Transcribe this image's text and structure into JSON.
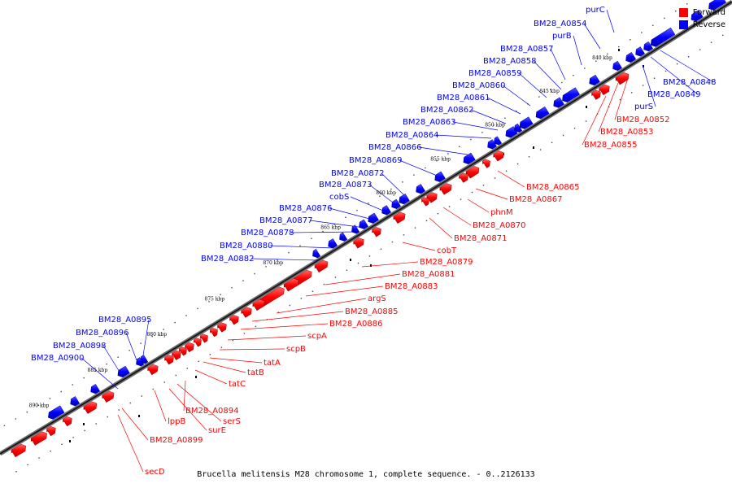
{
  "legend": {
    "forward_label": "Forward",
    "reverse_label": "Reverse",
    "forward_color": "#ff0000",
    "reverse_color": "#0000ff"
  },
  "caption": "Brucella melitensis M28 chromosome 1, complete sequence. - 0..2126133",
  "axis_ticks": [
    "840 kbp",
    "845 kbp",
    "850 kbp",
    "855 kbp",
    "860 kbp",
    "865 kbp",
    "870 kbp",
    "875 kbp",
    "880 kbp",
    "885 kbp",
    "890 kbp"
  ],
  "reverse_genes": [
    "purC",
    "BM28_A0854",
    "purB",
    "BM28_A0857",
    "BM28_A0858",
    "BM28_A0859",
    "BM28_A0860",
    "BM28_A0861",
    "BM28_A0862",
    "BM28_A0863",
    "BM28_A0864",
    "BM28_A0866",
    "BM28_A0869",
    "BM28_A0872",
    "BM28_A0873",
    "cobS",
    "BM28_A0876",
    "BM28_A0877",
    "BM28_A0878",
    "BM28_A0880",
    "BM28_A0882",
    "BM28_A0895",
    "BM28_A0896",
    "BM28_A0898",
    "BM28_A0900",
    "BM28_A0848",
    "BM28_A0849",
    "purS"
  ],
  "forward_genes": [
    "BM28_A0852",
    "BM28_A0853",
    "BM28_A0855",
    "BM28_A0865",
    "BM28_A0867",
    "phnM",
    "BM28_A0870",
    "BM28_A0871",
    "cobT",
    "BM28_A0879",
    "BM28_A0881",
    "BM28_A0883",
    "argS",
    "BM28_A0885",
    "BM28_A0886",
    "scpA",
    "scpB",
    "tatA",
    "tatB",
    "tatC",
    "BM28_A0894",
    "serS",
    "surE",
    "lppB",
    "BM28_A0899",
    "secD"
  ]
}
